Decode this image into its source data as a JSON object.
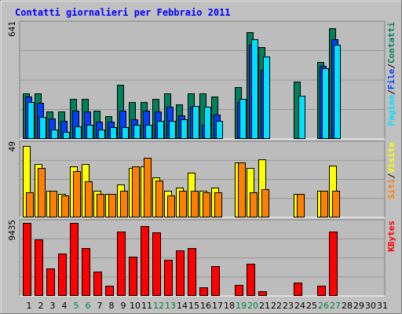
{
  "title": "Contatti giornalieri per Febbraio 2011",
  "colors": {
    "frame_bg": "#c0c0c0",
    "frame_border": "#808080",
    "plot_bg": "#bcbcbc",
    "title": "#0000ff",
    "grid": "#969696",
    "contatti": "#00805c",
    "file": "#0040ff",
    "pagine": "#00e0ff",
    "visite": "#ffff00",
    "siti": "#ff8000",
    "kbytes": "#ff0000",
    "day_label": "#000000",
    "weekend_label": "#008040"
  },
  "chart_data": [
    {
      "type": "bar",
      "panel": "hits",
      "ymax_label": "641",
      "ylim": [
        0,
        641
      ],
      "categories": [
        "1",
        "2",
        "3",
        "4",
        "5",
        "6",
        "7",
        "8",
        "9",
        "10",
        "11",
        "12",
        "13",
        "14",
        "15",
        "16",
        "17",
        "18",
        "19",
        "20",
        "21",
        "22",
        "23",
        "24",
        "25",
        "26",
        "27",
        "28",
        "29",
        "30",
        "31"
      ],
      "weekend_days": [
        "5",
        "6",
        "12",
        "13",
        "19",
        "20",
        "26",
        "27"
      ],
      "series": [
        {
          "name": "Contatti",
          "color_key": "contatti",
          "values": [
            256,
            256,
            154,
            154,
            224,
            224,
            160,
            128,
            304,
            208,
            208,
            224,
            256,
            192,
            256,
            256,
            237,
            0,
            288,
            595,
            512,
            0,
            0,
            320,
            0,
            432,
            621,
            0,
            0,
            0,
            0
          ]
        },
        {
          "name": "File",
          "color_key": "file",
          "values": [
            237,
            200,
            115,
            102,
            160,
            154,
            96,
            96,
            160,
            109,
            160,
            154,
            179,
            131,
            179,
            77,
            138,
            0,
            205,
            525,
            385,
            0,
            0,
            0,
            0,
            410,
            557,
            0,
            0,
            0,
            0
          ]
        },
        {
          "name": "Pagine",
          "color_key": "pagine",
          "values": [
            205,
            122,
            51,
            38,
            70,
            77,
            51,
            64,
            64,
            77,
            77,
            102,
            102,
            109,
            186,
            179,
            102,
            0,
            224,
            557,
            461,
            0,
            0,
            243,
            0,
            397,
            526,
            0,
            0,
            0,
            0
          ]
        }
      ]
    },
    {
      "type": "bar",
      "panel": "visits",
      "ymax_label": "49",
      "ylim": [
        0,
        49
      ],
      "categories": [
        "1",
        "2",
        "3",
        "4",
        "5",
        "6",
        "7",
        "8",
        "9",
        "10",
        "11",
        "12",
        "13",
        "14",
        "15",
        "16",
        "17",
        "18",
        "19",
        "20",
        "21",
        "22",
        "23",
        "24",
        "25",
        "26",
        "27",
        "28",
        "29",
        "30",
        "31"
      ],
      "series": [
        {
          "name": "Visite",
          "color_key": "visite",
          "values": [
            48,
            36,
            18,
            16,
            34,
            36,
            18,
            16,
            22,
            33,
            34,
            27,
            18,
            20,
            30,
            18,
            20,
            0,
            37,
            33,
            39,
            0,
            0,
            16,
            0,
            18,
            35,
            0,
            0,
            0,
            0
          ]
        },
        {
          "name": "Siti",
          "color_key": "siti",
          "values": [
            17,
            33,
            18,
            15,
            31,
            24,
            16,
            16,
            18,
            34,
            40,
            25,
            15,
            18,
            18,
            17,
            17,
            0,
            37,
            17,
            19,
            0,
            0,
            16,
            0,
            18,
            18,
            0,
            0,
            0,
            0
          ]
        }
      ]
    },
    {
      "type": "bar",
      "panel": "kbytes",
      "ymax_label": "9435",
      "ylim": [
        0,
        9435
      ],
      "categories": [
        "1",
        "2",
        "3",
        "4",
        "5",
        "6",
        "7",
        "8",
        "9",
        "10",
        "11",
        "12",
        "13",
        "14",
        "15",
        "16",
        "17",
        "18",
        "19",
        "20",
        "21",
        "22",
        "23",
        "24",
        "25",
        "26",
        "27",
        "28",
        "29",
        "30",
        "31"
      ],
      "series": [
        {
          "name": "KBytes",
          "color_key": "kbytes",
          "values": [
            9435,
            7300,
            3534,
            5519,
            9435,
            6170,
            3100,
            1272,
            8340,
            5100,
            9000,
            8170,
            4670,
            5840,
            6170,
            1120,
            3900,
            0,
            1390,
            4150,
            650,
            0,
            0,
            1760,
            0,
            1350,
            8270,
            0,
            0,
            0,
            0
          ]
        }
      ]
    }
  ],
  "right_labels": {
    "hits": [
      "Pagine",
      "/",
      "File",
      "/",
      "Contatti"
    ],
    "visits": [
      "Siti",
      "/",
      "Visite"
    ],
    "kbytes": [
      "KBytes"
    ]
  }
}
